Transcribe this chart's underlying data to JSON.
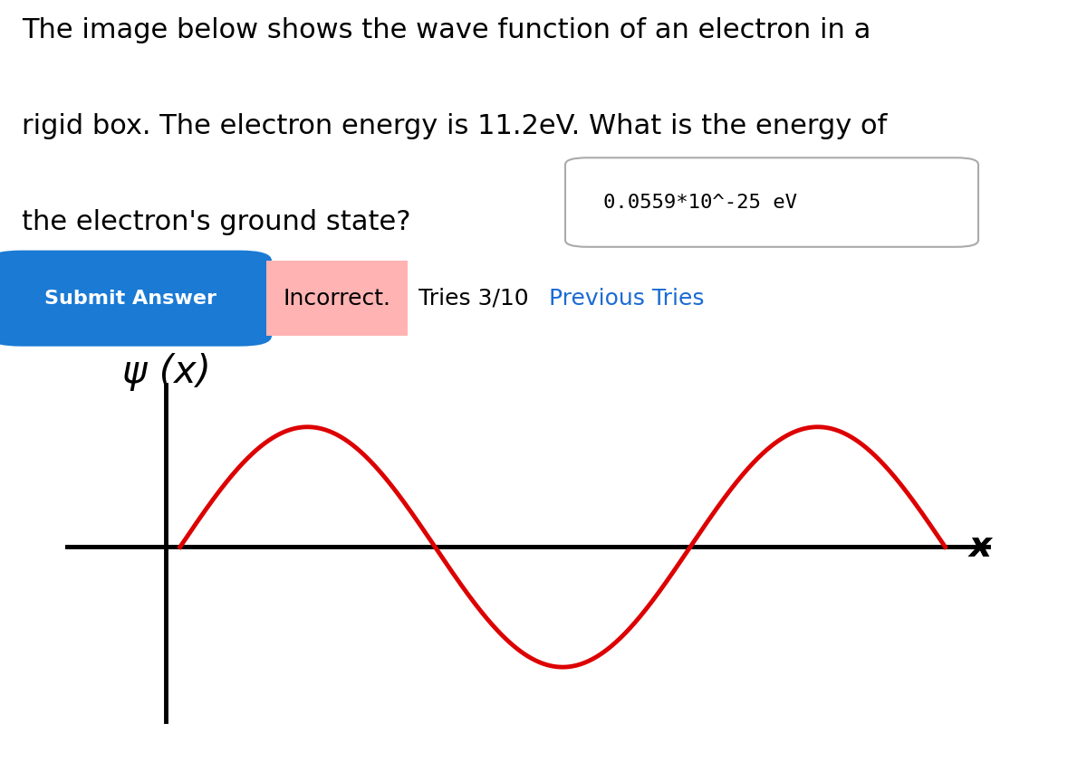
{
  "background_color": "#ffffff",
  "text_line1": "The image below shows the wave function of an electron in a",
  "text_line2": "rigid box. The electron energy is 11.2eV. What is the energy of",
  "text_line3": "the electron's ground state?",
  "answer_box_text": "0.0559*10^-25 eV",
  "submit_button_text": "Submit Answer",
  "submit_button_bg": "#1a7ad4",
  "submit_button_text_color": "#ffffff",
  "incorrect_text": "Incorrect.",
  "incorrect_bg": "#ffb3b3",
  "tries_text": "Tries 3/10 ",
  "previous_tries_text": "Previous Tries",
  "previous_tries_color": "#1a6bd4",
  "psi_label": "ψ (x)",
  "x_label": "x",
  "wave_color": "#dd0000",
  "axis_color": "#000000",
  "wave_n": 3,
  "text_fontsize": 22,
  "wave_linewidth": 3.5,
  "axis_linewidth": 3.5
}
